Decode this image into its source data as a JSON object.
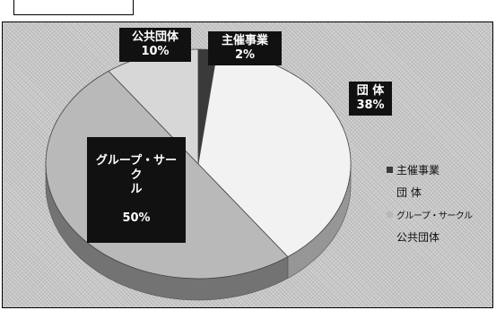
{
  "chart_data": {
    "type": "pie",
    "title": "",
    "slices": [
      {
        "label": "主催事業",
        "display_label": "主催事業",
        "value": 2,
        "value_text": "2%",
        "color": "#3a3a3a"
      },
      {
        "label": "団 体",
        "display_label": "団 体",
        "value": 38,
        "value_text": "38%",
        "color": "#f2f2f2"
      },
      {
        "label": "グループ・サークル",
        "display_label": "グループ・サーク\nル",
        "value": 50,
        "value_text": "50%",
        "color": "#b9b9b9"
      },
      {
        "label": "公共団体",
        "display_label": "公共団体",
        "value": 10,
        "value_text": "10%",
        "color": "#d7d7d7"
      }
    ],
    "legend": {
      "position": "right",
      "items": [
        "主催事業",
        "団 体",
        "グループ・サークル",
        "公共団体"
      ]
    }
  }
}
